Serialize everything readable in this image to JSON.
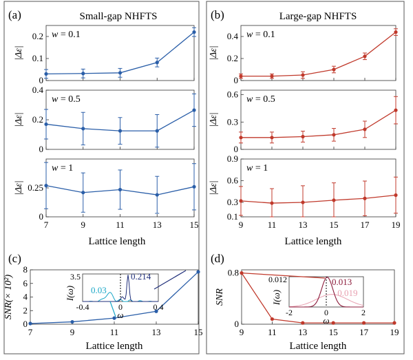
{
  "panel_labels": {
    "a": "(a)",
    "b": "(b)",
    "c": "(c)",
    "d": "(d)"
  },
  "column_titles": {
    "left": "Small-gap NHFTS",
    "right": "Large-gap NHFTS"
  },
  "common": {
    "ylabel": "|Δε|",
    "xlabel": "Lattice length"
  },
  "colors": {
    "blue": "#2a5ea8",
    "red": "#c0392b",
    "cyan": "#1aa7c7",
    "navy": "#1f2e7a",
    "pink": "#e8a0b0",
    "maroon": "#8b1a3a"
  },
  "chart_data": [
    {
      "id": "a1",
      "type": "line",
      "label": "w = 0.1",
      "x": [
        7,
        9,
        11,
        13,
        15
      ],
      "y": [
        0.03,
        0.032,
        0.035,
        0.082,
        0.22
      ],
      "err": [
        0.02,
        0.02,
        0.02,
        0.02,
        0.02
      ],
      "xlim": [
        7,
        15
      ],
      "ylim": [
        0,
        0.25
      ],
      "yticks": [
        "0",
        "0.1",
        "0.2"
      ],
      "ytick_vals": [
        0,
        0.1,
        0.2
      ],
      "xticks": [
        7,
        9,
        11,
        13,
        15
      ],
      "show_xticks": false,
      "color": "blue"
    },
    {
      "id": "a2",
      "type": "line",
      "label": "w = 0.5",
      "x": [
        7,
        9,
        11,
        13,
        15
      ],
      "y": [
        0.17,
        0.14,
        0.125,
        0.125,
        0.265
      ],
      "err": [
        0.1,
        0.11,
        0.09,
        0.11,
        0.11
      ],
      "xlim": [
        7,
        15
      ],
      "ylim": [
        0,
        0.4
      ],
      "yticks": [
        "0",
        "0.2",
        "0.4"
      ],
      "ytick_vals": [
        0,
        0.2,
        0.4
      ],
      "xticks": [
        7,
        9,
        11,
        13,
        15
      ],
      "show_xticks": false,
      "color": "blue"
    },
    {
      "id": "a3",
      "type": "line",
      "label": "w = 1",
      "x": [
        7,
        9,
        11,
        13,
        15
      ],
      "y": [
        0.27,
        0.21,
        0.235,
        0.19,
        0.26
      ],
      "err": [
        0.2,
        0.17,
        0.17,
        0.16,
        0.2
      ],
      "xlim": [
        7,
        15
      ],
      "ylim": [
        0,
        0.5
      ],
      "yticks": [
        "0",
        "0.25"
      ],
      "ytick_vals": [
        0,
        0.25
      ],
      "xticks": [
        7,
        9,
        11,
        13,
        15
      ],
      "show_xticks": true,
      "color": "blue"
    },
    {
      "id": "b1",
      "type": "line",
      "label": "w = 0.1",
      "x": [
        9,
        11,
        13,
        15,
        17,
        19
      ],
      "y": [
        0.04,
        0.04,
        0.05,
        0.1,
        0.22,
        0.44
      ],
      "err": [
        0.02,
        0.02,
        0.03,
        0.03,
        0.03,
        0.03
      ],
      "xlim": [
        9,
        19
      ],
      "ylim": [
        0,
        0.5
      ],
      "yticks": [
        "0",
        "0.2",
        "0.4"
      ],
      "ytick_vals": [
        0,
        0.2,
        0.4
      ],
      "xticks": [
        9,
        11,
        13,
        15,
        17,
        19
      ],
      "show_xticks": false,
      "color": "red"
    },
    {
      "id": "b2",
      "type": "line",
      "label": "w = 0.5",
      "x": [
        9,
        11,
        13,
        15,
        17,
        19
      ],
      "y": [
        0.13,
        0.13,
        0.14,
        0.16,
        0.22,
        0.43
      ],
      "err": [
        0.06,
        0.06,
        0.06,
        0.07,
        0.09,
        0.15
      ],
      "xlim": [
        9,
        19
      ],
      "ylim": [
        0,
        0.65
      ],
      "yticks": [
        "0",
        "0.3",
        "0.6"
      ],
      "ytick_vals": [
        0,
        0.3,
        0.6
      ],
      "xticks": [
        9,
        11,
        13,
        15,
        17,
        19
      ],
      "show_xticks": false,
      "color": "red"
    },
    {
      "id": "b3",
      "type": "line",
      "label": "w = 1",
      "x": [
        9,
        11,
        13,
        15,
        17,
        19
      ],
      "y": [
        0.32,
        0.29,
        0.3,
        0.33,
        0.355,
        0.4
      ],
      "err": [
        0.2,
        0.2,
        0.23,
        0.24,
        0.24,
        0.25
      ],
      "xlim": [
        9,
        19
      ],
      "ylim": [
        0.1,
        0.9
      ],
      "yticks": [
        "0.1",
        "0.3",
        "0.6",
        "0.9"
      ],
      "ytick_vals": [
        0.1,
        0.3,
        0.6,
        0.9
      ],
      "xticks": [
        9,
        11,
        13,
        15,
        17,
        19
      ],
      "show_xticks": true,
      "color": "red"
    },
    {
      "id": "c",
      "type": "line",
      "xlabel": "Lattice length",
      "ylabel": "SNR(× 10²)",
      "x": [
        7,
        9,
        11,
        13,
        15
      ],
      "y": [
        0.1,
        0.35,
        0.9,
        1.9,
        7.7
      ],
      "xlim": [
        7,
        15
      ],
      "ylim": [
        0,
        8
      ],
      "yticks": [
        "0",
        "2",
        "4",
        "6",
        "8"
      ],
      "ytick_vals": [
        0,
        2,
        4,
        6,
        8
      ],
      "xticks": [
        7,
        9,
        11,
        13,
        15
      ],
      "color": "blue",
      "inset": {
        "xlabel": "ω",
        "ylabel": "I(ω)",
        "xlim": [
          -0.4,
          0.4
        ],
        "ylim": [
          0,
          3.5
        ],
        "xticks": [
          "-0.4",
          "0",
          "0.4"
        ],
        "xtick_vals": [
          -0.4,
          0,
          0.4
        ],
        "ytick_top": "3.5",
        "annotations": [
          "0.03",
          "0.214"
        ]
      }
    },
    {
      "id": "d",
      "type": "line",
      "xlabel": "Lattice length",
      "ylabel": "SNR",
      "x": [
        9,
        11,
        13,
        15,
        17,
        19
      ],
      "y": [
        0.8,
        0.08,
        0.02,
        0.02,
        0.02,
        0.02
      ],
      "xlim": [
        9,
        19
      ],
      "ylim": [
        0,
        0.85
      ],
      "yticks": [
        "0",
        "0.8"
      ],
      "ytick_vals": [
        0,
        0.8
      ],
      "xticks": [
        9,
        11,
        13,
        15,
        17,
        19
      ],
      "color": "red",
      "inset": {
        "xlabel": "ω",
        "ylabel": "I(ω)",
        "xlim": [
          -2,
          2
        ],
        "ylim": [
          0,
          0.012
        ],
        "xticks": [
          "-2",
          "0",
          "2"
        ],
        "xtick_vals": [
          -2,
          0,
          2
        ],
        "ytick_top": "0.012",
        "annotations": [
          "0.013",
          "0.019"
        ]
      }
    }
  ]
}
